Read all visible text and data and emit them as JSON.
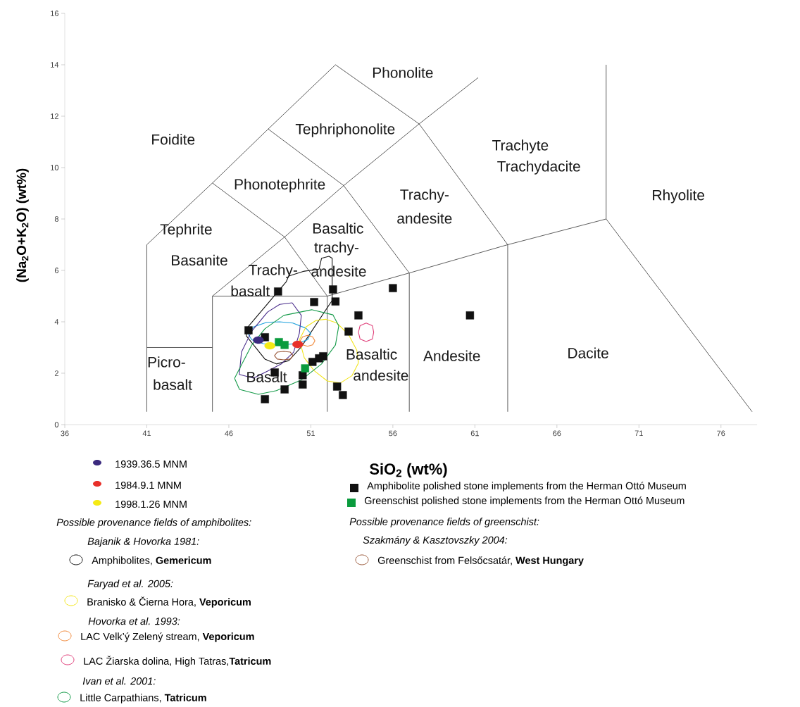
{
  "chart_data": {
    "type": "scatter",
    "xlabel": "SiO$_{2}$ (wt%)",
    "ylabel": "(Na$_{2}$O+K$_{2}$O) (wt%)",
    "xlim": [
      36,
      78.2
    ],
    "ylim": [
      0,
      16
    ],
    "xticks": [
      36,
      41,
      46,
      51,
      56,
      61,
      66,
      71,
      76
    ],
    "yticks": [
      0,
      2,
      4,
      6,
      8,
      10,
      12,
      14,
      16
    ],
    "legend": "bottom",
    "series": [
      {
        "type": "line",
        "color": "#333333",
        "marker": "none",
        "x": [
          41,
          41,
          45,
          48.4,
          52.5,
          57.6,
          63,
          63,
          null,
          41,
          45,
          null,
          45,
          45,
          49.4,
          53,
          57.6,
          61.2,
          null,
          45,
          52,
          52,
          null,
          49.4,
          52,
          57,
          63,
          69,
          69,
          null,
          69,
          77.9,
          null,
          57,
          57,
          53,
          48.4,
          null,
          45,
          49.4
        ],
        "values": [
          0.5,
          7,
          9.4,
          11.5,
          14,
          11.7,
          7,
          0.5,
          null,
          3,
          3,
          null,
          0.5,
          5,
          7.3,
          9.3,
          11.7,
          13.5,
          null,
          5,
          5,
          0.5,
          null,
          7.3,
          5,
          5.9,
          7,
          8,
          14,
          null,
          8,
          0.5,
          null,
          0.5,
          5.9,
          9.3,
          11.5,
          null,
          9.4,
          7.3
        ]
      },
      {
        "type": "line",
        "name": "Amphibolites, **Gemericum**",
        "color": "#111111",
        "marker": "none",
        "x": [
          47.07,
          49.5,
          49.65,
          50.6,
          51.5,
          51.65,
          52.1,
          52.3,
          52.3
        ],
        "values": [
          3.73,
          5.56,
          5.78,
          5.97,
          6.05,
          6.47,
          6.55,
          6.47,
          4.82
        ]
      },
      {
        "type": "line",
        "color": "#111111",
        "marker": "none",
        "x": [
          52.3,
          52.2,
          50.4,
          49.65,
          48.9,
          48.2,
          47.07,
          47.07
        ],
        "values": [
          4.82,
          4.74,
          3.01,
          2.49,
          2.36,
          2.55,
          3.45,
          3.73
        ]
      },
      {
        "type": "line",
        "color": "#1ba0dc",
        "marker": "none",
        "x": [
          47.2,
          47.5,
          48.3,
          49.1,
          49.9,
          50.7,
          51.0
        ],
        "values": [
          3.5,
          3.8,
          3.98,
          4.0,
          3.95,
          3.75,
          3.55
        ]
      },
      {
        "type": "line",
        "color": "#1ba0dc",
        "marker": "none",
        "x": [
          51.0,
          50.8,
          50.1,
          49.1,
          48.1,
          47.4,
          47.2
        ],
        "values": [
          3.55,
          3.3,
          3.15,
          3.1,
          3.15,
          3.3,
          3.5
        ]
      },
      {
        "type": "line",
        "color": "#4a2d8c",
        "marker": "none",
        "x": [
          49.86,
          50.42,
          50.3,
          49.95,
          49.2,
          48.36,
          47.5
        ],
        "values": [
          4.74,
          4.25,
          3.56,
          2.82,
          2.36,
          2.08,
          1.81
        ]
      },
      {
        "type": "line",
        "color": "#4a2d8c",
        "marker": "none",
        "x": [
          47.5,
          46.64,
          46.77,
          47.4,
          48.36,
          49.1,
          49.86
        ],
        "values": [
          1.81,
          1.95,
          2.82,
          3.64,
          4.38,
          4.68,
          4.74
        ]
      },
      {
        "type": "line",
        "name": "Branisko & Čierna Hora, **Veporicum**",
        "color": "#f2e51c",
        "marker": "none",
        "x": [
          50.3,
          50.7,
          51.3,
          51.9,
          52.6,
          53.3,
          53.8,
          53.9
        ],
        "values": [
          3.3,
          3.8,
          4.05,
          4.1,
          3.95,
          3.5,
          2.9,
          2.4
        ]
      },
      {
        "type": "line",
        "color": "#f2e51c",
        "marker": "none",
        "x": [
          53.9,
          53.5,
          52.8,
          52.0,
          51.2,
          50.6,
          50.3
        ],
        "values": [
          2.4,
          1.9,
          1.62,
          1.7,
          2.1,
          2.6,
          3.3
        ]
      },
      {
        "type": "line",
        "name": "LAC Velk’ý Zelený stream, **Veporicum**",
        "color": "#f08a3c",
        "marker": "none",
        "x": [
          50.35,
          50.5,
          50.8,
          51.1,
          51.25
        ],
        "values": [
          3.26,
          3.42,
          3.47,
          3.42,
          3.26
        ]
      },
      {
        "type": "line",
        "color": "#f08a3c",
        "marker": "none",
        "x": [
          51.25,
          51.1,
          50.8,
          50.5,
          50.35
        ],
        "values": [
          3.26,
          3.1,
          3.05,
          3.1,
          3.26
        ]
      },
      {
        "type": "line",
        "name": "LAC Žiarska dolina, High Tatras,**Tatricum**",
        "color": "#e0407a",
        "marker": "none",
        "x": [
          54.37,
          54.75,
          54.83,
          54.75,
          54.37
        ],
        "values": [
          3.95,
          3.85,
          3.59,
          3.33,
          3.23
        ]
      },
      {
        "type": "line",
        "color": "#e0407a",
        "marker": "none",
        "x": [
          54.37,
          54.0,
          53.9,
          54.0,
          54.37
        ],
        "values": [
          3.23,
          3.33,
          3.59,
          3.85,
          3.95
        ]
      },
      {
        "type": "line",
        "name": "Little Carpathians, **Tatricum**",
        "color": "#149a48",
        "marker": "none",
        "x": [
          46.35,
          46.8,
          47.4,
          48.2,
          49.35,
          51.05,
          52.35,
          52.7
        ],
        "values": [
          1.8,
          2.36,
          3.1,
          3.73,
          4.25,
          4.47,
          4.27,
          3.84
        ]
      },
      {
        "type": "line",
        "color": "#149a48",
        "marker": "none",
        "x": [
          52.7,
          52.5,
          51.65,
          50.4,
          48.9,
          47.8,
          46.65,
          46.35
        ],
        "values": [
          3.84,
          3.1,
          2.36,
          1.73,
          1.32,
          1.18,
          1.37,
          1.8
        ]
      },
      {
        "type": "line",
        "name": "Greenschist from Felsőcsatár, **West Hungary**",
        "color": "#9b5a3c",
        "marker": "none",
        "x": [
          48.78,
          48.95,
          49.35,
          49.75,
          49.92
        ],
        "values": [
          2.68,
          2.82,
          2.85,
          2.82,
          2.68
        ]
      },
      {
        "type": "line",
        "color": "#9b5a3c",
        "marker": "none",
        "x": [
          49.92,
          49.75,
          49.35,
          48.95,
          48.78
        ],
        "values": [
          2.68,
          2.55,
          2.52,
          2.55,
          2.68
        ]
      },
      {
        "name": "Amphibolite polished stone implements from the Herman Ottó Museum",
        "color": "#111111",
        "marker": "square",
        "x": [
          49.0,
          52.35,
          51.2,
          52.5,
          56.0,
          53.9,
          47.2,
          48.2,
          53.3,
          51.75,
          51.5,
          51.1,
          48.8,
          50.5,
          50.5,
          49.4,
          48.2,
          52.6,
          52.95,
          60.7
        ],
        "values": [
          5.18,
          5.26,
          4.77,
          4.79,
          5.31,
          4.25,
          3.67,
          3.4,
          3.62,
          2.66,
          2.58,
          2.44,
          2.03,
          1.92,
          1.56,
          1.37,
          0.99,
          1.48,
          1.15,
          4.25
        ]
      },
      {
        "name": "Greenschist polished stone implements from the Herman Ottó Museum",
        "color": "#0a9b3d",
        "marker": "square",
        "x": [
          49.05,
          49.4,
          50.65
        ],
        "values": [
          3.21,
          3.1,
          2.19
        ]
      },
      {
        "name": "1939.36.5 MNM",
        "color": "#3b2a7e",
        "marker": "circle",
        "x": [
          47.8
        ],
        "values": [
          3.29
        ]
      },
      {
        "name": "1984.9.1 MNM",
        "color": "#e8302a",
        "marker": "circle",
        "x": [
          50.2
        ],
        "values": [
          3.12
        ]
      },
      {
        "name": "1998.1.26 MNM",
        "color": "#f5ea14",
        "marker": "circle",
        "x": [
          48.5
        ],
        "values": [
          3.07
        ]
      }
    ],
    "annotations": [
      "Possible provenance fields of amphibolites:",
      "Bajanik & Hovorka 1981:",
      "Faryad et al. 2005:",
      "Hovorka et al. 1993:",
      "Ivan et al. 2001:",
      "Possible provenance fields of greenschist:",
      "Szakmány & Kasztovszky 2004:",
      "Foidite",
      "Phonolite",
      "Tephriphonolite",
      "Phonotephrite",
      "Tephrite",
      "Basanite",
      "Basaltic",
      "trachy-",
      "andesite",
      "Trachy-",
      "basalt",
      "Trachy-",
      "andesite",
      "Trachyte",
      "Trachydacite",
      "Rhyolite",
      "Picro-",
      "basalt",
      "Basalt",
      "Basaltic",
      "andesite",
      "Andesite",
      "Dacite"
    ]
  }
}
